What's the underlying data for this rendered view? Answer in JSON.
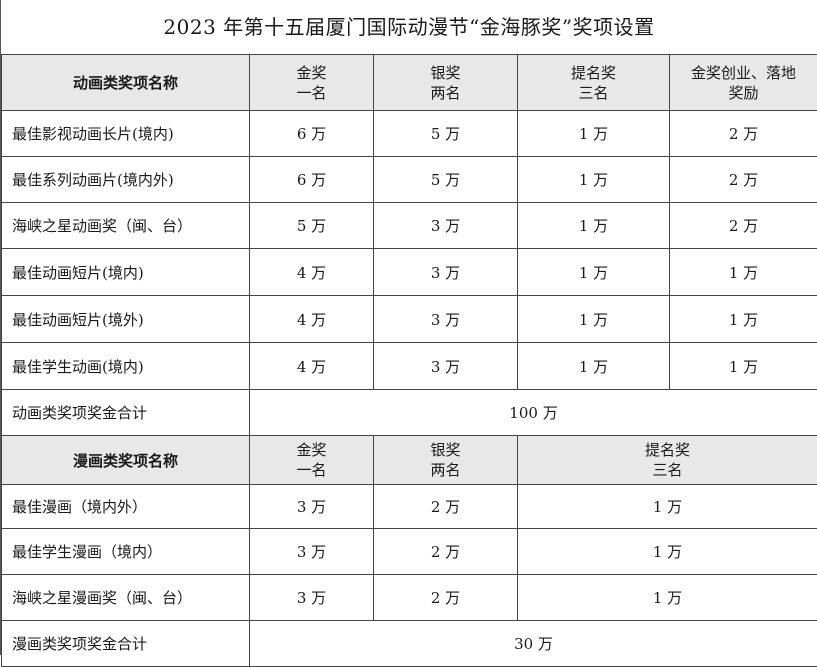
{
  "title": "2023 年第十五届厦门国际动漫节“金海豚奖”奖项设置",
  "animation": {
    "header": {
      "name": "动画类奖项名称",
      "gold_1": "金奖",
      "gold_2": "一名",
      "silver_1": "银奖",
      "silver_2": "两名",
      "nom_1": "提名奖",
      "nom_2": "三名",
      "startup_1": "金奖创业、落地",
      "startup_2": "奖励"
    },
    "rows": [
      {
        "name": "最佳影视动画长片(境内)",
        "gold": "6 万",
        "silver": "5 万",
        "nom": "1 万",
        "startup": "2 万"
      },
      {
        "name": "最佳系列动画片(境内外)",
        "gold": "6 万",
        "silver": "5 万",
        "nom": "1 万",
        "startup": "2 万"
      },
      {
        "name": "海峡之星动画奖（闽、台）",
        "gold": "5 万",
        "silver": "3 万",
        "nom": "1 万",
        "startup": "2 万"
      },
      {
        "name": "最佳动画短片(境内)",
        "gold": "4 万",
        "silver": "3 万",
        "nom": "1 万",
        "startup": "1 万"
      },
      {
        "name": "最佳动画短片(境外)",
        "gold": "4 万",
        "silver": "3 万",
        "nom": "1 万",
        "startup": "1 万"
      },
      {
        "name": "最佳学生动画(境内)",
        "gold": "4 万",
        "silver": "3 万",
        "nom": "1 万",
        "startup": "1 万"
      }
    ],
    "total_label": "动画类奖项奖金合计",
    "total_value": "100 万"
  },
  "comics": {
    "header": {
      "name": "漫画类奖项名称",
      "gold_1": "金奖",
      "gold_2": "一名",
      "silver_1": "银奖",
      "silver_2": "两名",
      "nom_1": "提名奖",
      "nom_2": "三名"
    },
    "rows": [
      {
        "name": "最佳漫画（境内外）",
        "gold": "3 万",
        "silver": "2 万",
        "nom": "1 万"
      },
      {
        "name": "最佳学生漫画（境内）",
        "gold": "3 万",
        "silver": "2 万",
        "nom": "1 万"
      },
      {
        "name": "海峡之星漫画奖（闽、台）",
        "gold": "3 万",
        "silver": "2 万",
        "nom": "1 万"
      }
    ],
    "total_label": "漫画类奖项奖金合计",
    "total_value": "30 万"
  }
}
